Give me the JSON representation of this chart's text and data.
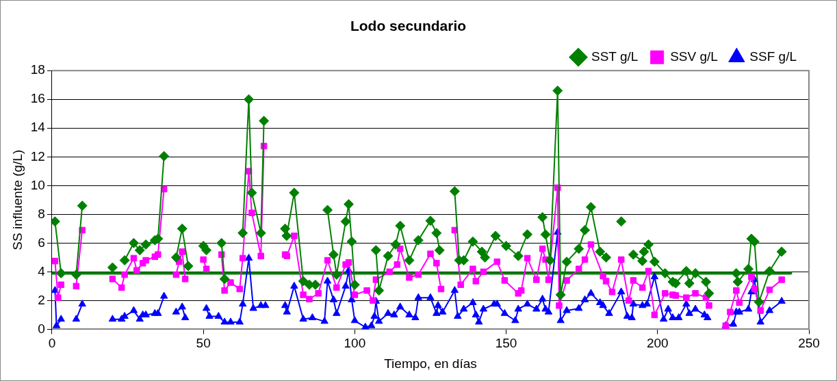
{
  "chart_data": {
    "type": "line",
    "title": "Lodo secundario",
    "xlabel": "Tiempo, en días",
    "ylabel": "SS influente (g/L)",
    "xlim": [
      0,
      250
    ],
    "xticks": [
      0,
      50,
      100,
      150,
      200,
      250
    ],
    "ylim": [
      0,
      18
    ],
    "yticks": [
      0,
      2,
      4,
      6,
      8,
      10,
      12,
      14,
      16,
      18
    ],
    "grid": "y",
    "legend": "top right",
    "line_style": "solid",
    "series": [
      {
        "name": "SST g/L",
        "color": "#008000",
        "marker": "diamond",
        "x": [
          1,
          3,
          5.5,
          8,
          10,
          15,
          20,
          22,
          24,
          27,
          29,
          31,
          34,
          35,
          37,
          39,
          41,
          43,
          45,
          47.5,
          50,
          51,
          53.5,
          56,
          57,
          60,
          63,
          65,
          66,
          69,
          70,
          73.5,
          77,
          77.5,
          80,
          83,
          85,
          87,
          89,
          91,
          93,
          94,
          97,
          98,
          99,
          100,
          103.5,
          107,
          108,
          111,
          113.5,
          115,
          118,
          121,
          125,
          127,
          128,
          130.5,
          133,
          134.5,
          136,
          139,
          142,
          143,
          146.5,
          150,
          154,
          157,
          159.5,
          162,
          163,
          164.5,
          167,
          168,
          170,
          174,
          176,
          178,
          181,
          183,
          185.5,
          188,
          190,
          192,
          195,
          195.5,
          197,
          199,
          202.5,
          205,
          206,
          209.5,
          210.5,
          212.5,
          216,
          217,
          221.5,
          226,
          226.5,
          230,
          231,
          232,
          233.5,
          237,
          241
        ],
        "values": [
          7.5,
          3.9,
          null,
          3.8,
          8.6,
          null,
          4.3,
          null,
          4.8,
          6.0,
          5.5,
          5.9,
          6.2,
          6.3,
          12.05,
          null,
          5.0,
          7.0,
          4.4,
          null,
          5.8,
          5.5,
          null,
          6.0,
          3.5,
          null,
          6.7,
          16.0,
          9.5,
          6.7,
          14.5,
          null,
          7.0,
          6.5,
          9.5,
          3.35,
          3.1,
          3.1,
          null,
          8.3,
          5.2,
          3.8,
          7.5,
          8.7,
          6.1,
          3.1,
          null,
          5.5,
          2.7,
          5.1,
          5.9,
          7.2,
          4.8,
          6.2,
          7.55,
          6.7,
          5.5,
          null,
          9.6,
          4.8,
          4.8,
          6.1,
          5.4,
          5.0,
          6.5,
          5.8,
          5.1,
          6.6,
          null,
          7.8,
          6.6,
          4.8,
          16.6,
          2.4,
          4.7,
          5.6,
          6.9,
          8.5,
          5.4,
          5.0,
          null,
          7.5,
          null,
          5.2,
          4.75,
          5.4,
          5.9,
          4.7,
          3.9,
          3.3,
          3.2,
          4.05,
          3.2,
          3.9,
          3.3,
          2.5,
          null,
          3.9,
          3.3,
          4.2,
          6.3,
          6.1,
          1.9,
          4.05,
          5.4
        ]
      },
      {
        "name": "SSV g/L",
        "color": "#ff00ff",
        "marker": "square",
        "x": [
          1,
          2,
          3,
          5.5,
          8,
          10,
          15,
          20,
          23,
          24,
          27,
          28,
          30,
          31,
          34,
          35,
          37,
          39,
          41,
          42,
          43,
          44,
          47.5,
          50,
          51,
          53.5,
          56,
          57,
          59,
          62,
          63,
          65,
          66,
          69,
          70,
          73.5,
          77,
          77.6,
          80,
          83,
          85,
          88,
          91,
          94,
          97,
          98,
          100,
          104,
          106,
          107,
          111.5,
          114,
          115,
          118,
          121,
          125,
          127,
          128.5,
          130.5,
          133,
          135,
          139,
          140,
          142.5,
          147,
          149.5,
          154,
          155,
          157,
          160,
          162,
          163,
          164,
          167,
          167.5,
          170,
          174,
          176,
          178,
          182,
          183,
          185,
          188,
          190.5,
          192,
          195,
          197,
          199,
          202.5,
          205,
          206,
          209.5,
          212.5,
          216,
          217,
          220,
          222.5,
          224,
          226,
          227,
          231,
          232,
          234,
          237,
          241
        ],
        "values": [
          4.75,
          2.2,
          3.1,
          null,
          3.0,
          6.9,
          null,
          3.5,
          2.9,
          3.8,
          4.95,
          4.1,
          4.6,
          4.8,
          5.05,
          5.2,
          9.75,
          null,
          3.8,
          4.7,
          5.4,
          3.5,
          null,
          4.85,
          4.2,
          null,
          5.2,
          2.7,
          3.25,
          2.8,
          4.95,
          11.0,
          8.1,
          5.1,
          12.75,
          null,
          5.2,
          5.1,
          6.5,
          2.4,
          2.1,
          2.5,
          4.8,
          2.9,
          4.5,
          4.65,
          2.4,
          2.7,
          2.0,
          3.45,
          4.0,
          4.5,
          5.6,
          3.6,
          3.8,
          5.25,
          4.6,
          2.8,
          null,
          6.9,
          3.1,
          4.2,
          3.35,
          4.0,
          4.7,
          3.4,
          2.5,
          2.7,
          4.95,
          3.45,
          5.6,
          4.85,
          3.45,
          9.85,
          1.65,
          3.4,
          4.2,
          4.85,
          5.9,
          3.7,
          3.35,
          2.6,
          4.85,
          2.0,
          3.4,
          2.9,
          4.05,
          1.0,
          2.5,
          2.4,
          2.35,
          2.2,
          2.5,
          2.2,
          1.65,
          null,
          0.25,
          1.2,
          2.7,
          1.85,
          3.65,
          2.8,
          1.3,
          2.75,
          3.45
        ]
      },
      {
        "name": "SSF g/L",
        "color": "#0000ff",
        "marker": "triangle",
        "x": [
          1,
          1.5,
          3,
          5.5,
          8,
          10,
          15,
          20,
          23,
          24,
          27,
          29,
          30,
          31,
          34,
          35,
          37,
          39,
          41,
          43,
          44,
          47.5,
          51,
          52,
          55,
          57,
          59,
          62,
          63,
          65,
          66.5,
          69,
          70.5,
          73.5,
          77,
          77.6,
          80,
          83,
          86,
          90,
          91,
          93,
          94,
          97,
          98,
          99,
          100,
          103.5,
          105.5,
          106.5,
          107,
          108,
          111,
          113,
          115,
          118,
          120,
          121,
          125,
          127,
          127.5,
          129,
          133,
          134,
          136,
          139,
          140,
          141,
          142.5,
          146,
          147,
          149.5,
          153,
          154,
          157,
          160,
          162,
          163,
          164,
          167,
          168,
          170,
          174,
          176,
          178,
          181,
          182,
          184,
          188,
          190,
          191.5,
          192,
          195,
          196.5,
          199,
          202,
          203.5,
          205,
          207,
          209.5,
          210.5,
          212.5,
          215.5,
          216.5,
          220,
          222.5,
          225,
          226,
          227,
          230,
          231,
          232,
          234,
          237,
          241
        ],
        "values": [
          2.7,
          0.25,
          0.7,
          null,
          0.7,
          1.75,
          null,
          0.7,
          0.7,
          0.9,
          1.3,
          0.7,
          1.0,
          1.0,
          1.1,
          1.1,
          2.3,
          null,
          1.2,
          1.55,
          0.8,
          null,
          1.45,
          0.9,
          0.9,
          0.5,
          0.5,
          0.5,
          1.75,
          4.95,
          1.45,
          1.65,
          1.65,
          null,
          1.65,
          1.2,
          3.0,
          0.7,
          0.8,
          0.55,
          3.35,
          2.05,
          1.1,
          3.0,
          4.1,
          2.05,
          0.6,
          0.15,
          0.25,
          0.9,
          1.95,
          0.55,
          1.1,
          1.0,
          1.55,
          1.0,
          0.8,
          2.2,
          2.2,
          1.1,
          1.65,
          1.2,
          2.7,
          0.9,
          1.4,
          1.85,
          1.0,
          0.5,
          1.4,
          1.75,
          1.75,
          1.1,
          0.6,
          1.4,
          1.75,
          1.4,
          2.1,
          1.4,
          1.2,
          6.75,
          0.6,
          1.3,
          1.45,
          2.05,
          2.5,
          1.85,
          1.65,
          1.1,
          2.6,
          0.9,
          0.8,
          1.75,
          1.65,
          1.75,
          3.65,
          0.7,
          1.4,
          0.8,
          0.8,
          1.75,
          1.1,
          1.4,
          1.0,
          0.8,
          null,
          0.25,
          0.35,
          1.2,
          1.2,
          1.4,
          2.6,
          3.45,
          0.5,
          1.3,
          1.95
        ]
      },
      {
        "type": "line",
        "color": "#008000",
        "marker": "none",
        "x": [
          0,
          244
        ],
        "values": [
          3.9,
          3.9
        ]
      }
    ]
  }
}
